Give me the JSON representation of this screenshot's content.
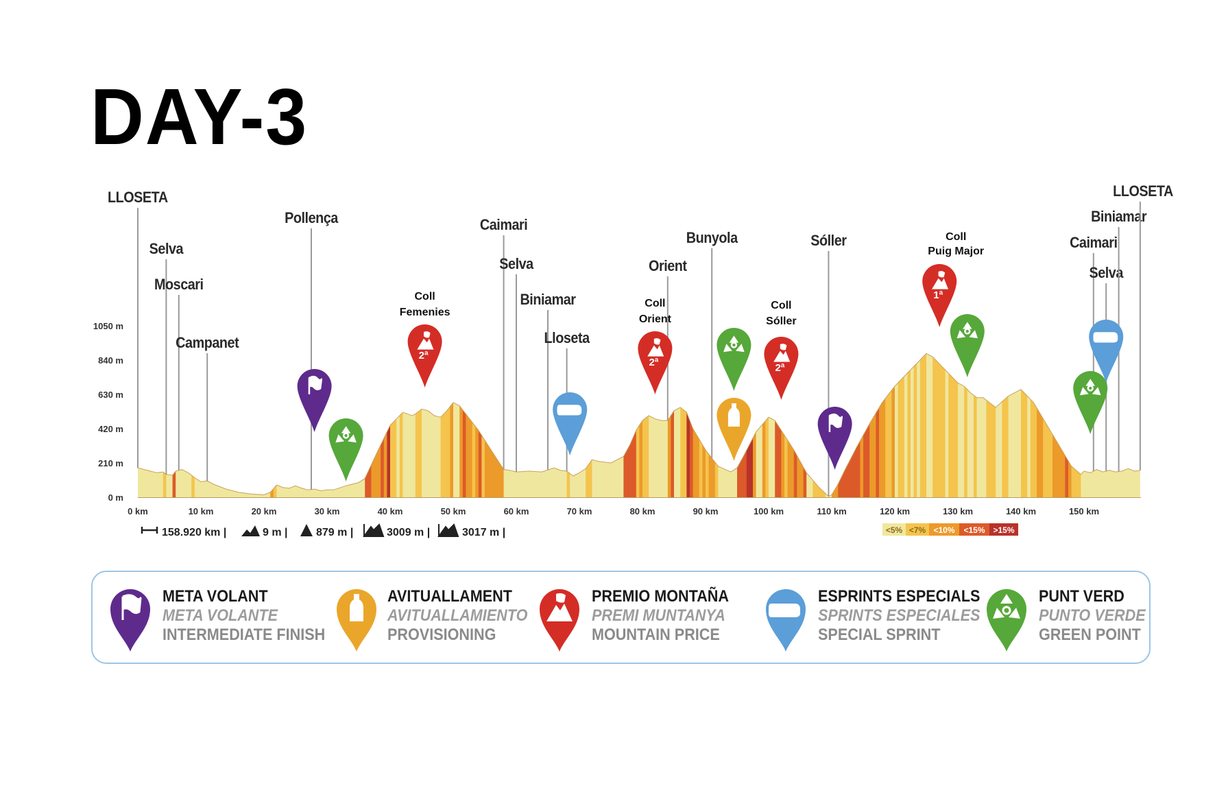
{
  "page": {
    "title": "DAY-3"
  },
  "chart_data": {
    "type": "area",
    "title": "",
    "xlabel": "",
    "ylabel": "",
    "xlim": [
      0,
      160
    ],
    "ylim": [
      0,
      1050
    ],
    "x_ticks": [
      {
        "value": 0,
        "label": "0 km"
      },
      {
        "value": 10,
        "label": "10 km"
      },
      {
        "value": 20,
        "label": "20 km"
      },
      {
        "value": 30,
        "label": "30 km"
      },
      {
        "value": 40,
        "label": "40 km"
      },
      {
        "value": 50,
        "label": "50 km"
      },
      {
        "value": 60,
        "label": "60 km"
      },
      {
        "value": 70,
        "label": "70 km"
      },
      {
        "value": 80,
        "label": "80 km"
      },
      {
        "value": 90,
        "label": "90 km"
      },
      {
        "value": 100,
        "label": "100 km"
      },
      {
        "value": 110,
        "label": "110 km"
      },
      {
        "value": 120,
        "label": "120 km"
      },
      {
        "value": 130,
        "label": "130 km"
      },
      {
        "value": 140,
        "label": "140 km"
      },
      {
        "value": 150,
        "label": "150 km"
      }
    ],
    "y_ticks": [
      {
        "value": 0,
        "label": "0 m"
      },
      {
        "value": 210,
        "label": "210 m"
      },
      {
        "value": 420,
        "label": "420 m"
      },
      {
        "value": 630,
        "label": "630 m"
      },
      {
        "value": 840,
        "label": "840 m"
      },
      {
        "value": 1050,
        "label": "1050 m"
      }
    ],
    "profile": {
      "x": [
        0,
        1,
        2,
        3,
        4,
        4.5,
        5.5,
        6,
        7,
        8,
        9,
        10,
        11,
        12,
        14,
        16,
        18,
        20,
        21,
        22,
        23,
        24,
        25,
        26,
        27,
        28,
        29,
        30,
        31,
        33,
        35,
        36,
        38,
        40,
        42,
        43.5,
        44,
        45,
        46,
        47,
        48,
        49,
        50,
        51,
        52,
        54,
        56,
        58,
        59,
        60,
        62,
        64,
        66,
        67,
        68,
        69,
        70,
        71,
        72,
        73,
        75,
        77,
        78,
        79,
        80,
        81,
        82,
        83,
        84,
        85,
        86,
        87,
        88,
        90,
        92,
        94,
        95,
        96,
        98,
        100,
        101,
        102,
        104,
        106,
        108,
        109.5,
        110,
        111,
        112,
        114,
        116,
        118,
        120,
        122,
        124,
        125,
        126,
        127,
        128,
        129,
        130,
        131,
        132,
        133,
        134,
        135,
        136,
        138,
        139,
        140,
        142,
        144,
        146,
        148,
        149.5,
        150,
        151,
        152,
        153,
        154,
        155,
        156,
        157,
        158,
        158.9
      ],
      "y": [
        180,
        170,
        160,
        150,
        155,
        140,
        135,
        160,
        170,
        150,
        120,
        95,
        100,
        80,
        50,
        30,
        20,
        15,
        30,
        75,
        60,
        55,
        70,
        55,
        45,
        50,
        40,
        45,
        45,
        70,
        90,
        115,
        280,
        440,
        520,
        500,
        510,
        540,
        530,
        500,
        490,
        530,
        580,
        560,
        510,
        410,
        290,
        170,
        165,
        155,
        160,
        155,
        180,
        165,
        160,
        130,
        150,
        175,
        230,
        220,
        210,
        250,
        320,
        410,
        470,
        500,
        480,
        470,
        470,
        530,
        550,
        520,
        420,
        290,
        190,
        155,
        180,
        250,
        400,
        490,
        470,
        410,
        290,
        150,
        60,
        5,
        15,
        80,
        160,
        310,
        450,
        580,
        680,
        760,
        840,
        880,
        860,
        820,
        780,
        740,
        700,
        680,
        640,
        610,
        610,
        580,
        550,
        620,
        640,
        660,
        580,
        450,
        320,
        190,
        140,
        160,
        150,
        170,
        155,
        165,
        155,
        160,
        175,
        160,
        165
      ]
    },
    "places": [
      {
        "km": 0,
        "label": "LLOSETA"
      },
      {
        "km": 4.5,
        "label": "Selva"
      },
      {
        "km": 6.5,
        "label": "Moscari"
      },
      {
        "km": 11,
        "label": "Campanet"
      },
      {
        "km": 27.5,
        "label": "Pollença"
      },
      {
        "km": 58,
        "label": "Caimari"
      },
      {
        "km": 60,
        "label": "Selva"
      },
      {
        "km": 65,
        "label": "Biniamar"
      },
      {
        "km": 68,
        "label": "Lloseta"
      },
      {
        "km": 84,
        "label": "Orient"
      },
      {
        "km": 91,
        "label": "Bunyola"
      },
      {
        "km": 109.5,
        "label": "Sóller"
      },
      {
        "km": 151.5,
        "label": "Caimari"
      },
      {
        "km": 153.5,
        "label": "Selva"
      },
      {
        "km": 155.5,
        "label": "Biniamar"
      },
      {
        "km": 158.9,
        "label": "LLOSETA"
      }
    ],
    "climbs": [
      {
        "km": 45.5,
        "line1": "Coll",
        "line2": "Femenies",
        "category": "2ª"
      },
      {
        "km": 82,
        "line1": "Coll",
        "line2": "Orient",
        "category": "2ª"
      },
      {
        "km": 102,
        "line1": "Coll",
        "line2": "Sóller",
        "category": "2ª"
      },
      {
        "km": 126,
        "line1": "Coll",
        "line2": "Puig Major",
        "category": "1ª"
      }
    ],
    "markers": [
      {
        "km": 28,
        "type": "meta-volant"
      },
      {
        "km": 33,
        "type": "punt-verde"
      },
      {
        "km": 68.5,
        "type": "esprint"
      },
      {
        "km": 94.5,
        "type": "punt-verde"
      },
      {
        "km": 94.5,
        "type": "avituallament"
      },
      {
        "km": 110.5,
        "type": "meta-volant"
      },
      {
        "km": 131.5,
        "type": "punt-verde"
      },
      {
        "km": 151,
        "type": "punt-verde"
      },
      {
        "km": 153.5,
        "type": "esprint"
      }
    ],
    "gradient_legend": [
      "<5%",
      "<7%",
      "<10%",
      "<15%",
      ">15%"
    ],
    "stats": {
      "distance": "158.920 km |",
      "min_alt": "9 m |",
      "max_alt": "879 m |",
      "ascent": "3009 m |",
      "descent": "3017 m |"
    }
  },
  "legend": [
    {
      "color": "#5e2b8c",
      "icon": "flag-icon",
      "line1": "META VOLANT",
      "line2": "META VOLANTE",
      "line3": "INTERMEDIATE FINISH"
    },
    {
      "color": "#eaa62a",
      "icon": "bottle-icon",
      "line1": "AVITUALLAMENT",
      "line2": "AVITUALLAMIENTO",
      "line3": "PROVISIONING"
    },
    {
      "color": "#d42d26",
      "icon": "mountain-flag-icon",
      "line1": "PREMIO MONTAÑA",
      "line2": "PREMI MUNTANYA",
      "line3": "MOUNTAIN PRICE"
    },
    {
      "color": "#5b9ed8",
      "icon": "sprint-icon",
      "line1": "ESPRINTS ESPECIALS",
      "line2": "SPRINTS ESPECIALES",
      "line3": "SPECIAL SPRINT"
    },
    {
      "color": "#56a83a",
      "icon": "recycle-icon",
      "line1": "PUNT VERD",
      "line2": "PUNTO VERDE",
      "line3": "GREEN POINT"
    }
  ],
  "colors": {
    "purple": "#5e2b8c",
    "orange": "#eaa62a",
    "red": "#d42d26",
    "blue": "#5b9ed8",
    "green": "#56a83a",
    "grade1": "#f0e79e",
    "grade2": "#f4c44d",
    "grade3": "#ec9a2a",
    "grade4": "#dc5a2a",
    "grade5": "#b8322a"
  }
}
